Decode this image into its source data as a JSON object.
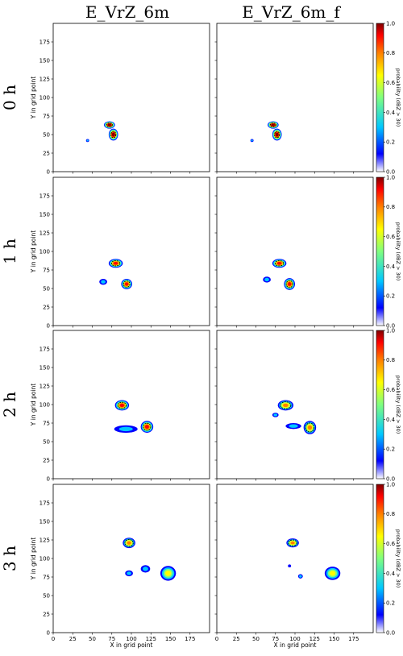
{
  "column_titles": [
    "E_VrZ_6m",
    "E_VrZ_6m_f"
  ],
  "row_labels": [
    "0 h",
    "1 h",
    "2 h",
    "3 h"
  ],
  "xlabel": "X in grid point",
  "ylabel": "Y in grid point",
  "colorbar_label": "probability (dBZ > 30)",
  "colors": {
    "colormap": [
      "#ffffff",
      "#0000ff",
      "#00c8ff",
      "#7fff7f",
      "#ffff00",
      "#ff8000",
      "#ff0000",
      "#800000"
    ],
    "contour": "#000000",
    "frame": "#000000"
  },
  "chart_data": {
    "type": "heatmap",
    "title": "",
    "xlabel": "X in grid point",
    "ylabel": "Y in grid point",
    "colorbar_label": "probability (dBZ > 30)",
    "xlim": [
      0,
      200
    ],
    "ylim": [
      0,
      200
    ],
    "xticks": [
      0,
      25,
      50,
      75,
      100,
      125,
      150,
      175
    ],
    "yticks": [
      0,
      25,
      50,
      75,
      100,
      125,
      150,
      175
    ],
    "colorbar_range": [
      0.0,
      1.0
    ],
    "colorbar_ticks": [
      0.0,
      0.2,
      0.4,
      0.6,
      0.8,
      1.0
    ],
    "contour_threshold_label": "black contour outlines high-probability cores",
    "panels": [
      {
        "column": "E_VrZ_6m",
        "row": "0 h",
        "blobs": [
          {
            "x": 72,
            "y": 63,
            "rx": 7,
            "ry": 5,
            "p": 1.0
          },
          {
            "x": 77,
            "y": 50,
            "rx": 6,
            "ry": 8,
            "p": 1.0
          },
          {
            "x": 44,
            "y": 42,
            "rx": 2,
            "ry": 2,
            "p": 0.35
          }
        ]
      },
      {
        "column": "E_VrZ_6m_f",
        "row": "0 h",
        "blobs": [
          {
            "x": 72,
            "y": 63,
            "rx": 7,
            "ry": 5,
            "p": 1.0
          },
          {
            "x": 77,
            "y": 50,
            "rx": 6,
            "ry": 8,
            "p": 1.0
          },
          {
            "x": 45,
            "y": 42,
            "rx": 2,
            "ry": 2,
            "p": 0.35
          }
        ]
      },
      {
        "column": "E_VrZ_6m",
        "row": "1 h",
        "blobs": [
          {
            "x": 80,
            "y": 84,
            "rx": 9,
            "ry": 6,
            "p": 0.95
          },
          {
            "x": 94,
            "y": 56,
            "rx": 7,
            "ry": 7,
            "p": 0.95
          },
          {
            "x": 64,
            "y": 59,
            "rx": 5,
            "ry": 4,
            "p": 0.45
          }
        ]
      },
      {
        "column": "E_VrZ_6m_f",
        "row": "1 h",
        "blobs": [
          {
            "x": 80,
            "y": 84,
            "rx": 9,
            "ry": 6,
            "p": 0.95
          },
          {
            "x": 93,
            "y": 56,
            "rx": 7,
            "ry": 8,
            "p": 0.95
          },
          {
            "x": 64,
            "y": 62,
            "rx": 5,
            "ry": 4,
            "p": 0.4
          }
        ]
      },
      {
        "column": "E_VrZ_6m",
        "row": "2 h",
        "blobs": [
          {
            "x": 88,
            "y": 99,
            "rx": 9,
            "ry": 7,
            "p": 0.95
          },
          {
            "x": 120,
            "y": 70,
            "rx": 8,
            "ry": 8,
            "p": 0.95
          },
          {
            "x": 93,
            "y": 67,
            "rx": 15,
            "ry": 5,
            "p": 0.45
          }
        ]
      },
      {
        "column": "E_VrZ_6m_f",
        "row": "2 h",
        "blobs": [
          {
            "x": 88,
            "y": 99,
            "rx": 10,
            "ry": 7,
            "p": 0.9
          },
          {
            "x": 119,
            "y": 69,
            "rx": 8,
            "ry": 9,
            "p": 0.9
          },
          {
            "x": 98,
            "y": 71,
            "rx": 10,
            "ry": 4,
            "p": 0.4
          },
          {
            "x": 75,
            "y": 86,
            "rx": 4,
            "ry": 3,
            "p": 0.3
          }
        ]
      },
      {
        "column": "E_VrZ_6m",
        "row": "3 h",
        "blobs": [
          {
            "x": 97,
            "y": 121,
            "rx": 8,
            "ry": 7,
            "p": 0.85
          },
          {
            "x": 147,
            "y": 80,
            "rx": 10,
            "ry": 10,
            "p": 0.75
          },
          {
            "x": 118,
            "y": 86,
            "rx": 6,
            "ry": 5,
            "p": 0.3
          },
          {
            "x": 97,
            "y": 80,
            "rx": 5,
            "ry": 4,
            "p": 0.35
          }
        ]
      },
      {
        "column": "E_VrZ_6m_f",
        "row": "3 h",
        "blobs": [
          {
            "x": 97,
            "y": 121,
            "rx": 8,
            "ry": 6,
            "p": 0.85
          },
          {
            "x": 148,
            "y": 80,
            "rx": 10,
            "ry": 9,
            "p": 0.75
          },
          {
            "x": 107,
            "y": 76,
            "rx": 3,
            "ry": 3,
            "p": 0.3
          },
          {
            "x": 93,
            "y": 90,
            "rx": 2,
            "ry": 2,
            "p": 0.2
          }
        ]
      }
    ]
  }
}
